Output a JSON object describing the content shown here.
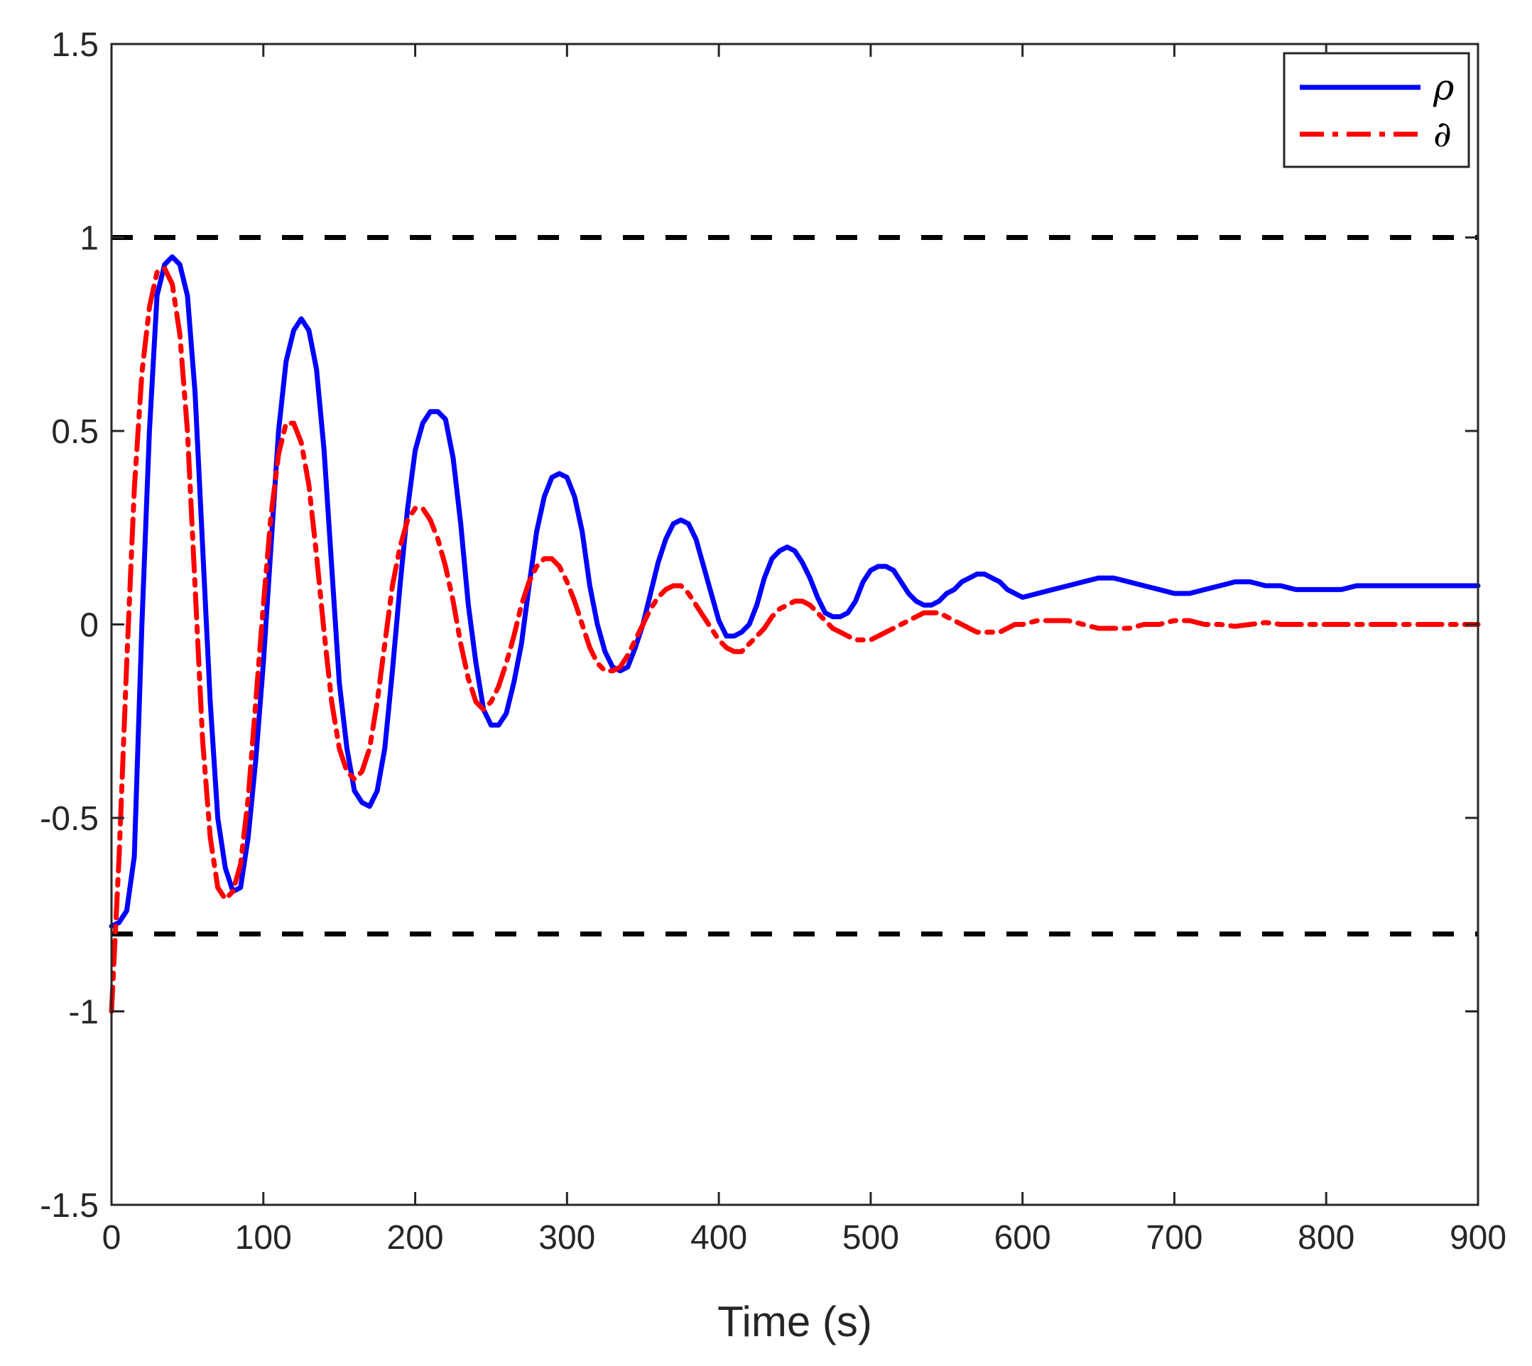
{
  "chart_data": {
    "type": "line",
    "title": "",
    "xlabel": "Time (s)",
    "ylabel": "",
    "xlim": [
      0,
      900
    ],
    "ylim": [
      -1.5,
      1.5
    ],
    "x_ticks": [
      0,
      100,
      200,
      300,
      400,
      500,
      600,
      700,
      800,
      900
    ],
    "x_tick_labels": [
      "0",
      "100",
      "200",
      "300",
      "400",
      "500",
      "600",
      "700",
      "800",
      "900"
    ],
    "y_ticks": [
      -1.5,
      -1,
      -0.5,
      0,
      0.5,
      1,
      1.5
    ],
    "y_tick_labels": [
      "-1.5",
      "-1",
      "-0.5",
      "0",
      "0.5",
      "1",
      "1.5"
    ],
    "grid": false,
    "legend_position": "top-right",
    "series": [
      {
        "name": "ρ",
        "color": "#0000ff",
        "style": "solid",
        "x": [
          0,
          5,
          10,
          15,
          20,
          25,
          30,
          35,
          40,
          45,
          50,
          55,
          60,
          65,
          70,
          75,
          80,
          85,
          90,
          95,
          100,
          105,
          110,
          115,
          120,
          125,
          130,
          135,
          140,
          145,
          150,
          155,
          160,
          165,
          170,
          175,
          180,
          185,
          190,
          195,
          200,
          205,
          210,
          215,
          220,
          225,
          230,
          235,
          240,
          245,
          250,
          255,
          260,
          265,
          270,
          275,
          280,
          285,
          290,
          295,
          300,
          305,
          310,
          315,
          320,
          325,
          330,
          335,
          340,
          345,
          350,
          355,
          360,
          365,
          370,
          375,
          380,
          385,
          390,
          395,
          400,
          405,
          410,
          415,
          420,
          425,
          430,
          435,
          440,
          445,
          450,
          455,
          460,
          465,
          470,
          475,
          480,
          485,
          490,
          495,
          500,
          505,
          510,
          515,
          520,
          525,
          530,
          535,
          540,
          545,
          550,
          555,
          560,
          565,
          570,
          575,
          580,
          585,
          590,
          595,
          600,
          610,
          620,
          630,
          640,
          650,
          660,
          670,
          680,
          690,
          700,
          710,
          720,
          730,
          740,
          750,
          760,
          770,
          780,
          790,
          800,
          810,
          820,
          830,
          840,
          850,
          860,
          870,
          880,
          890,
          900
        ],
        "y": [
          -0.78,
          -0.77,
          -0.74,
          -0.6,
          0.0,
          0.5,
          0.85,
          0.93,
          0.95,
          0.93,
          0.85,
          0.6,
          0.2,
          -0.2,
          -0.5,
          -0.63,
          -0.69,
          -0.68,
          -0.55,
          -0.35,
          -0.1,
          0.2,
          0.5,
          0.68,
          0.76,
          0.79,
          0.76,
          0.66,
          0.45,
          0.15,
          -0.15,
          -0.32,
          -0.43,
          -0.46,
          -0.47,
          -0.43,
          -0.32,
          -0.12,
          0.1,
          0.3,
          0.45,
          0.52,
          0.55,
          0.55,
          0.53,
          0.43,
          0.26,
          0.05,
          -0.1,
          -0.22,
          -0.26,
          -0.26,
          -0.23,
          -0.15,
          -0.05,
          0.1,
          0.24,
          0.33,
          0.38,
          0.39,
          0.38,
          0.33,
          0.24,
          0.1,
          0.0,
          -0.07,
          -0.11,
          -0.12,
          -0.11,
          -0.06,
          0.0,
          0.08,
          0.16,
          0.22,
          0.26,
          0.27,
          0.26,
          0.22,
          0.15,
          0.08,
          0.01,
          -0.03,
          -0.03,
          -0.02,
          0.0,
          0.05,
          0.12,
          0.17,
          0.19,
          0.2,
          0.19,
          0.16,
          0.12,
          0.07,
          0.03,
          0.02,
          0.02,
          0.03,
          0.06,
          0.11,
          0.14,
          0.15,
          0.15,
          0.14,
          0.11,
          0.08,
          0.06,
          0.05,
          0.05,
          0.06,
          0.08,
          0.09,
          0.11,
          0.12,
          0.13,
          0.13,
          0.12,
          0.11,
          0.09,
          0.08,
          0.07,
          0.08,
          0.09,
          0.1,
          0.11,
          0.12,
          0.12,
          0.11,
          0.1,
          0.09,
          0.08,
          0.08,
          0.09,
          0.1,
          0.11,
          0.11,
          0.1,
          0.1,
          0.09,
          0.09,
          0.09,
          0.09,
          0.1,
          0.1,
          0.1,
          0.1,
          0.1,
          0.1,
          0.1,
          0.1,
          0.1
        ]
      },
      {
        "name": "∂",
        "color": "#ff0000",
        "style": "dash-dot",
        "x": [
          0,
          5,
          10,
          15,
          20,
          25,
          30,
          35,
          40,
          45,
          50,
          55,
          60,
          65,
          70,
          75,
          80,
          85,
          90,
          95,
          100,
          105,
          110,
          115,
          120,
          125,
          130,
          135,
          140,
          145,
          150,
          155,
          160,
          165,
          170,
          175,
          180,
          185,
          190,
          195,
          200,
          205,
          210,
          215,
          220,
          225,
          230,
          235,
          240,
          245,
          250,
          255,
          260,
          265,
          270,
          275,
          280,
          285,
          290,
          295,
          300,
          305,
          310,
          315,
          320,
          325,
          330,
          335,
          340,
          345,
          350,
          355,
          360,
          365,
          370,
          375,
          380,
          385,
          390,
          395,
          400,
          405,
          410,
          415,
          420,
          425,
          430,
          435,
          440,
          445,
          450,
          455,
          460,
          465,
          470,
          475,
          480,
          485,
          490,
          495,
          500,
          505,
          510,
          515,
          520,
          525,
          530,
          535,
          540,
          545,
          550,
          555,
          560,
          565,
          570,
          575,
          580,
          585,
          590,
          595,
          600,
          610,
          620,
          630,
          640,
          650,
          660,
          670,
          680,
          690,
          700,
          710,
          720,
          730,
          740,
          750,
          760,
          770,
          780,
          790,
          800,
          810,
          820,
          830,
          840,
          850,
          860,
          870,
          880,
          890,
          900
        ],
        "y": [
          -1.0,
          -0.6,
          -0.1,
          0.35,
          0.65,
          0.82,
          0.91,
          0.92,
          0.88,
          0.75,
          0.5,
          0.1,
          -0.3,
          -0.55,
          -0.68,
          -0.71,
          -0.69,
          -0.62,
          -0.45,
          -0.2,
          0.05,
          0.28,
          0.44,
          0.52,
          0.52,
          0.47,
          0.36,
          0.18,
          -0.02,
          -0.2,
          -0.32,
          -0.38,
          -0.4,
          -0.38,
          -0.32,
          -0.2,
          -0.05,
          0.1,
          0.2,
          0.27,
          0.3,
          0.3,
          0.27,
          0.22,
          0.15,
          0.06,
          -0.05,
          -0.14,
          -0.2,
          -0.22,
          -0.2,
          -0.16,
          -0.1,
          -0.03,
          0.05,
          0.11,
          0.15,
          0.17,
          0.17,
          0.15,
          0.11,
          0.06,
          0.0,
          -0.06,
          -0.1,
          -0.12,
          -0.12,
          -0.11,
          -0.08,
          -0.04,
          0.0,
          0.04,
          0.07,
          0.09,
          0.1,
          0.1,
          0.08,
          0.05,
          0.02,
          -0.01,
          -0.04,
          -0.06,
          -0.07,
          -0.07,
          -0.05,
          -0.03,
          -0.01,
          0.02,
          0.04,
          0.05,
          0.06,
          0.06,
          0.05,
          0.03,
          0.01,
          -0.01,
          -0.02,
          -0.03,
          -0.04,
          -0.04,
          -0.04,
          -0.03,
          -0.02,
          -0.01,
          0.0,
          0.01,
          0.02,
          0.03,
          0.03,
          0.03,
          0.02,
          0.01,
          0.0,
          -0.01,
          -0.02,
          -0.02,
          -0.02,
          -0.02,
          -0.01,
          0.0,
          0.0,
          0.01,
          0.01,
          0.01,
          0.0,
          -0.01,
          -0.01,
          -0.01,
          0.0,
          0.0,
          0.01,
          0.01,
          0.0,
          0.0,
          -0.005,
          0.0,
          0.005,
          0.0,
          0.0,
          0.0,
          0.0,
          0.0,
          0.0,
          0.0,
          0.0,
          0.0,
          0.0,
          0.0,
          0.0,
          0.0,
          0.0
        ]
      }
    ],
    "reference_lines": [
      {
        "y": 1,
        "color": "#000000",
        "style": "dashed"
      },
      {
        "y": -0.8,
        "color": "#000000",
        "style": "dashed"
      }
    ]
  }
}
